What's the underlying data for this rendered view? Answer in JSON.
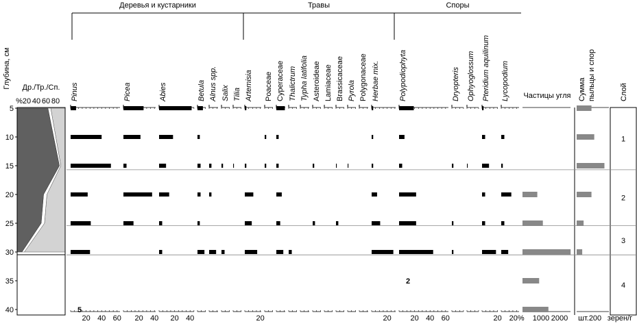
{
  "depth_axis": {
    "label": "Глубина, см",
    "ticks": [
      5,
      10,
      15,
      20,
      25,
      30,
      35,
      40
    ]
  },
  "ratio": {
    "label": "Др./Тр./Сп.",
    "ticks": [
      {
        "value": 0,
        "label": "%"
      },
      20,
      40,
      60,
      80
    ],
    "depths": [
      5,
      15,
      20,
      25,
      30
    ],
    "trees": [
      64,
      88,
      55,
      50,
      10
    ],
    "herbs": [
      6,
      3,
      7,
      7,
      5
    ]
  },
  "groups": [
    "Деревья и кустарники",
    "Травы",
    "Споры"
  ],
  "depths": [
    5,
    10,
    15,
    20,
    25,
    30
  ],
  "taxa": [
    {
      "name": "Pinus",
      "italic": true,
      "values": [
        7,
        40,
        52,
        22,
        26,
        25
      ],
      "ticks": [
        20,
        40,
        60
      ],
      "note": {
        "text": "5",
        "depth": 40
      }
    },
    {
      "name": "Picea",
      "italic": true,
      "values": [
        26,
        22,
        4,
        37,
        13,
        0
      ],
      "ticks": [
        20,
        40
      ]
    },
    {
      "name": "Abies",
      "italic": true,
      "values": [
        42,
        18,
        9,
        13,
        4,
        4
      ],
      "ticks": [
        20,
        40
      ]
    },
    {
      "name": "Betula",
      "italic": true,
      "values": [
        7,
        3,
        4,
        4,
        3,
        9
      ]
    },
    {
      "name": "Alnus spp.",
      "italic": true,
      "values": [
        0,
        0,
        3,
        3,
        0,
        9
      ]
    },
    {
      "name": "Salix",
      "italic": true,
      "values": [
        0,
        0,
        2,
        0,
        0,
        4
      ]
    },
    {
      "name": "Tilia",
      "italic": true,
      "values": [
        0,
        0,
        1,
        0,
        0,
        0
      ]
    },
    {
      "name": "Artemisia",
      "italic": true,
      "values": [
        2,
        0,
        2,
        11,
        9,
        16
      ],
      "ticks": [
        20
      ]
    },
    {
      "name": "Poaceae",
      "italic": false,
      "values": [
        0,
        2,
        2,
        0,
        0,
        0
      ]
    },
    {
      "name": "Cyperaceae",
      "italic": false,
      "values": [
        11,
        3,
        3,
        7,
        5,
        9
      ]
    },
    {
      "name": "Thalictrum",
      "italic": true,
      "values": [
        0,
        0,
        0,
        0,
        0,
        4
      ]
    },
    {
      "name": "Typha latifolia",
      "italic": true,
      "values": [
        0,
        0,
        0,
        0,
        0,
        0
      ]
    },
    {
      "name": "Asteroideae",
      "italic": false,
      "values": [
        0,
        0,
        2,
        0,
        3,
        0
      ]
    },
    {
      "name": "Lamiaceae",
      "italic": false,
      "values": [
        0,
        0,
        0,
        0,
        0,
        0
      ]
    },
    {
      "name": "Brassicaceae",
      "italic": false,
      "values": [
        0,
        0,
        1,
        0,
        3,
        0
      ]
    },
    {
      "name": "Pyrola",
      "italic": true,
      "values": [
        0,
        0,
        1,
        0,
        0,
        0
      ]
    },
    {
      "name": "Polygonaceae",
      "italic": false,
      "values": [
        0,
        0,
        0,
        0,
        0,
        0
      ]
    },
    {
      "name": "Herbae mix.",
      "italic": true,
      "values": [
        2,
        2,
        2,
        7,
        11,
        28
      ],
      "ticks": [
        20
      ]
    },
    {
      "name": "Polypodiophyta",
      "italic": true,
      "values": [
        19,
        7,
        4,
        22,
        22,
        44
      ],
      "ticks": [
        20,
        40,
        60
      ],
      "note": {
        "text": "2",
        "depth": 35
      }
    },
    {
      "name": "Dryopteris",
      "italic": true,
      "values": [
        0,
        0,
        2,
        0,
        2,
        2
      ]
    },
    {
      "name": "Ophyoglossum",
      "italic": true,
      "values": [
        0,
        0,
        1,
        0,
        0,
        0
      ]
    },
    {
      "name": "Pteridium aquilinum",
      "italic": true,
      "values": [
        2,
        4,
        9,
        4,
        4,
        18
      ],
      "ticks": [
        20
      ]
    },
    {
      "name": "Lycopodium",
      "italic": true,
      "values": [
        0,
        4,
        2,
        13,
        4,
        9
      ],
      "ticks": [
        {
          "value": 20,
          "label": "20%"
        }
      ]
    }
  ],
  "charcoal": {
    "name": "Частицы угля",
    "unit": "шт.",
    "depths": [
      5,
      10,
      15,
      20,
      25,
      30,
      35,
      40
    ],
    "values": [
      0,
      0,
      0,
      800,
      1100,
      2600,
      900,
      1400
    ],
    "ticks": [
      1000,
      2000
    ]
  },
  "sum": {
    "name": [
      "Сумма",
      "пыльцы и спор"
    ],
    "unit": "зерен/г",
    "depths": [
      5,
      10,
      15,
      20,
      25,
      30
    ],
    "values": [
      160,
      190,
      300,
      160,
      75,
      60
    ],
    "ticks": [
      200
    ]
  },
  "layers": {
    "label": "Слой",
    "names": [
      "1",
      "2",
      "3",
      "4"
    ],
    "boundaries": [
      15.7,
      25.4,
      30.5
    ]
  }
}
